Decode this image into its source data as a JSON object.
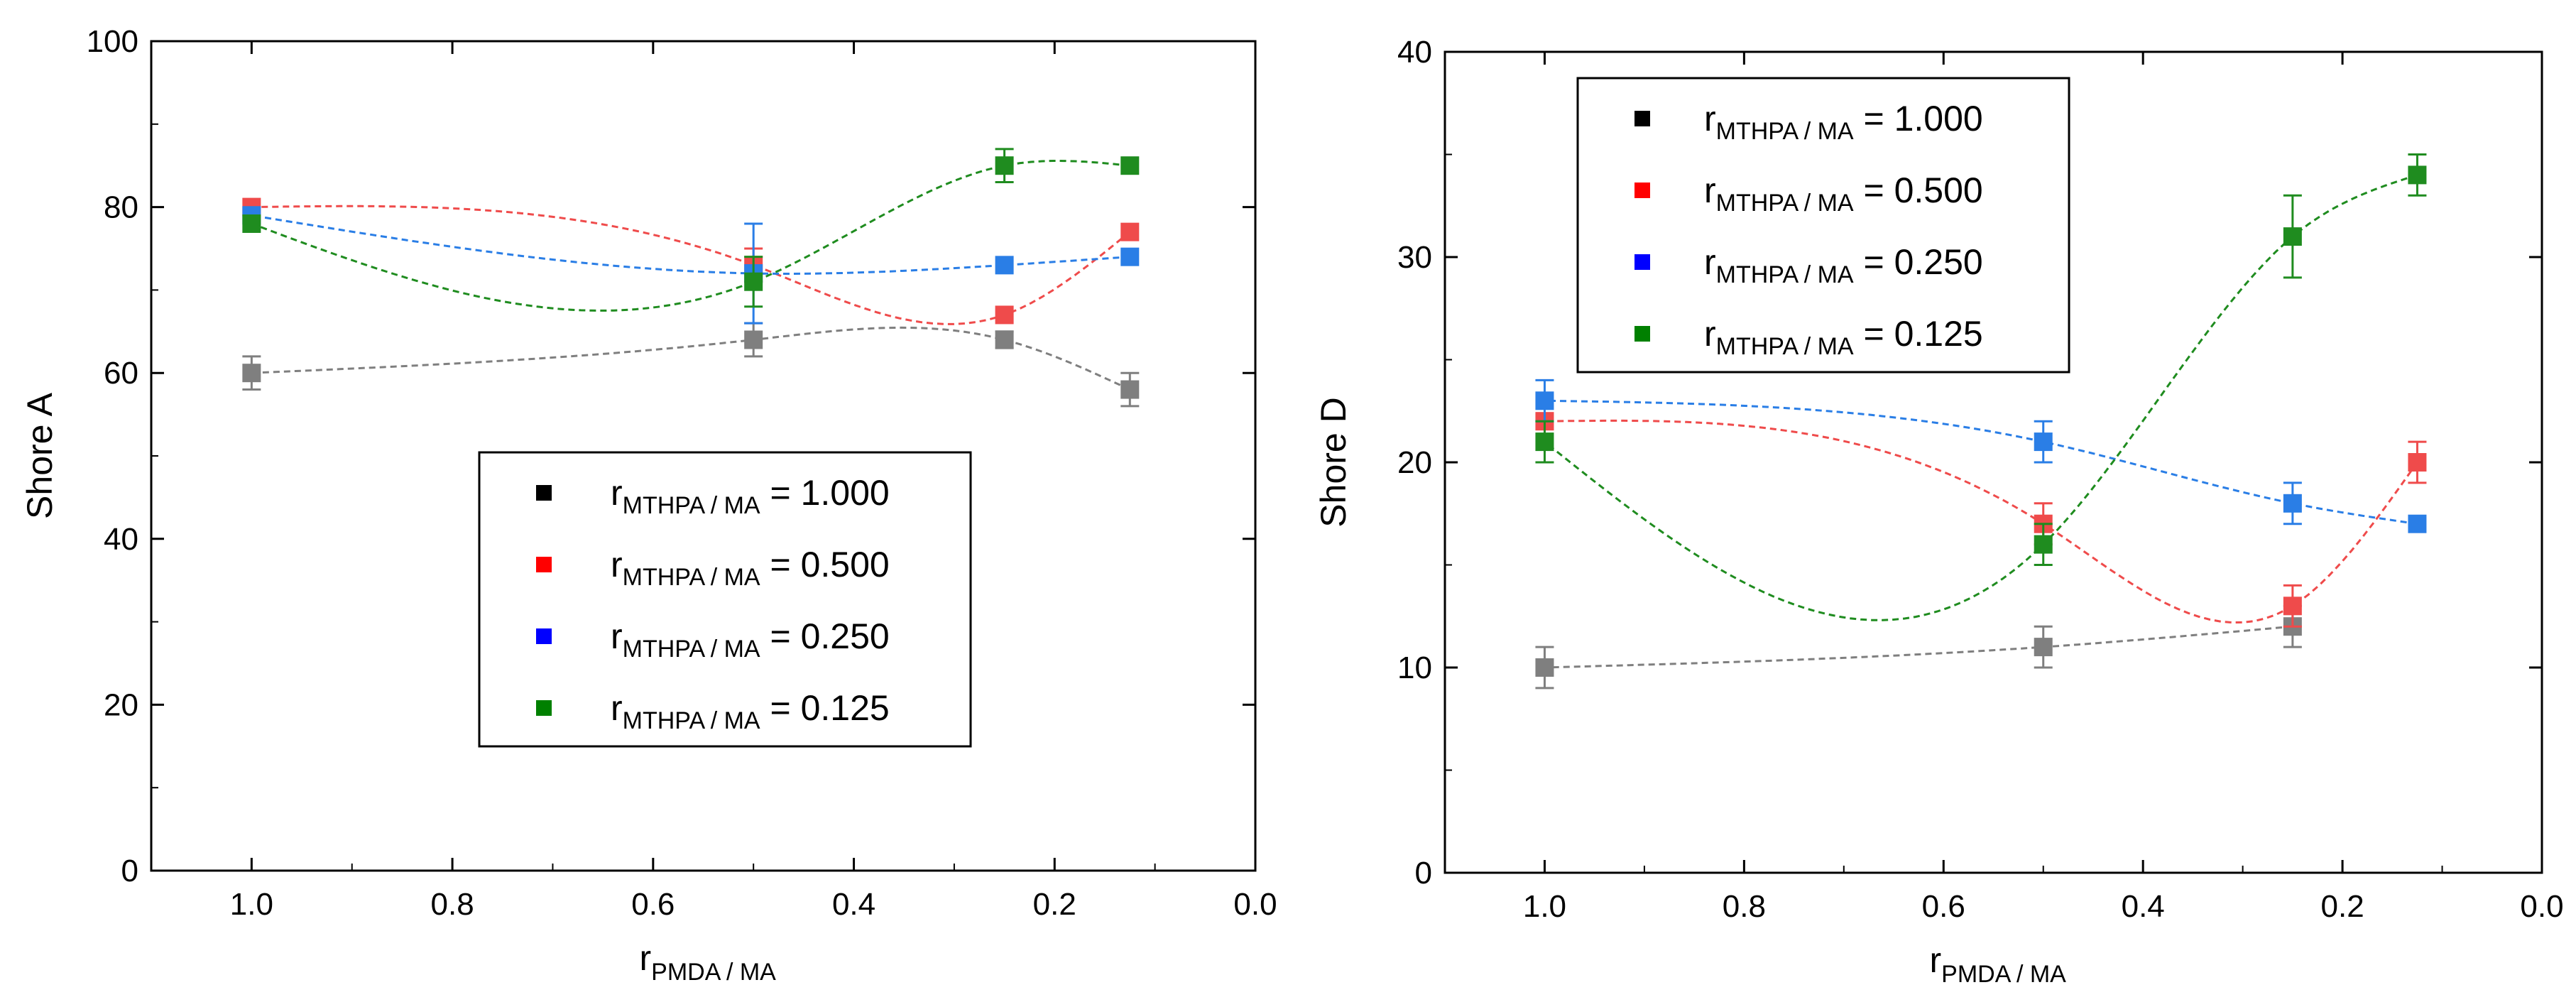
{
  "chart_data": [
    {
      "type": "scatter",
      "id": "shore-a",
      "ylabel": "Shore A",
      "xlabel_main": "r",
      "xlabel_sub": "PMDA / MA",
      "xlim": [
        1.1,
        0.0
      ],
      "ylim": [
        0,
        100
      ],
      "x_ticks": [
        1.0,
        0.8,
        0.6,
        0.4,
        0.2,
        0.0
      ],
      "x_tick_labels": [
        "1.0",
        "0.8",
        "0.6",
        "0.4",
        "0.2",
        "0.0"
      ],
      "y_ticks": [
        0,
        20,
        40,
        60,
        80,
        100
      ],
      "y_tick_labels": [
        "0",
        "20",
        "40",
        "60",
        "80",
        "100"
      ],
      "legend_position": "lower-right",
      "series": [
        {
          "legend_main": "r",
          "legend_sub": "MTHPA / MA",
          "legend_value": " = 1.000",
          "marker_color": "#000000",
          "color": "#7f7f7f",
          "x": [
            1.0,
            0.5,
            0.25,
            0.125
          ],
          "y": [
            60,
            64,
            64,
            58
          ],
          "err": [
            2,
            2,
            1,
            2
          ]
        },
        {
          "legend_main": "r",
          "legend_sub": "MTHPA / MA",
          "legend_value": " = 0.500",
          "marker_color": "#ff0000",
          "color": "#ef4b4b",
          "x": [
            1.0,
            0.5,
            0.25,
            0.125
          ],
          "y": [
            80,
            73,
            67,
            77
          ],
          "err": [
            0,
            2,
            0,
            0
          ]
        },
        {
          "legend_main": "r",
          "legend_sub": "MTHPA / MA",
          "legend_value": " = 0.250",
          "marker_color": "#0000ff",
          "color": "#2a7ee6",
          "x": [
            1.0,
            0.5,
            0.25,
            0.125
          ],
          "y": [
            79,
            72,
            73,
            74
          ],
          "err": [
            0,
            6,
            0,
            0
          ]
        },
        {
          "legend_main": "r",
          "legend_sub": "MTHPA / MA",
          "legend_value": " = 0.125",
          "marker_color": "#008000",
          "color": "#1f8c1f",
          "x": [
            1.0,
            0.5,
            0.25,
            0.125
          ],
          "y": [
            78,
            71,
            85,
            85
          ],
          "err": [
            0,
            3,
            2,
            0
          ]
        }
      ]
    },
    {
      "type": "scatter",
      "id": "shore-d",
      "ylabel": "Shore D",
      "xlabel_main": "r",
      "xlabel_sub": "PMDA / MA",
      "xlim": [
        1.1,
        0.0
      ],
      "ylim": [
        0,
        40
      ],
      "x_ticks": [
        1.0,
        0.8,
        0.6,
        0.4,
        0.2,
        0.0
      ],
      "x_tick_labels": [
        "1.0",
        "0.8",
        "0.6",
        "0.4",
        "0.2",
        "0.0"
      ],
      "y_ticks": [
        0,
        10,
        20,
        30,
        40
      ],
      "y_tick_labels": [
        "0",
        "10",
        "20",
        "30",
        "40"
      ],
      "legend_position": "top-left",
      "series": [
        {
          "legend_main": "r",
          "legend_sub": "MTHPA / MA",
          "legend_value": " = 1.000",
          "marker_color": "#000000",
          "color": "#7f7f7f",
          "x": [
            1.0,
            0.5,
            0.25
          ],
          "y": [
            10,
            11,
            12
          ],
          "err": [
            1,
            1,
            1
          ]
        },
        {
          "legend_main": "r",
          "legend_sub": "MTHPA / MA",
          "legend_value": " = 0.500",
          "marker_color": "#ff0000",
          "color": "#ef4b4b",
          "x": [
            1.0,
            0.5,
            0.25,
            0.125
          ],
          "y": [
            22,
            17,
            13,
            20
          ],
          "err": [
            0,
            1,
            1,
            1
          ]
        },
        {
          "legend_main": "r",
          "legend_sub": "MTHPA / MA",
          "legend_value": " = 0.250",
          "marker_color": "#0000ff",
          "color": "#2a7ee6",
          "x": [
            1.0,
            0.5,
            0.25,
            0.125
          ],
          "y": [
            23,
            21,
            18,
            17
          ],
          "err": [
            1,
            1,
            1,
            0
          ]
        },
        {
          "legend_main": "r",
          "legend_sub": "MTHPA / MA",
          "legend_value": " = 0.125",
          "marker_color": "#008000",
          "color": "#1f8c1f",
          "x": [
            1.0,
            0.5,
            0.25,
            0.125
          ],
          "y": [
            21,
            16,
            31,
            34
          ],
          "err": [
            1,
            1,
            2,
            1
          ]
        }
      ]
    }
  ]
}
